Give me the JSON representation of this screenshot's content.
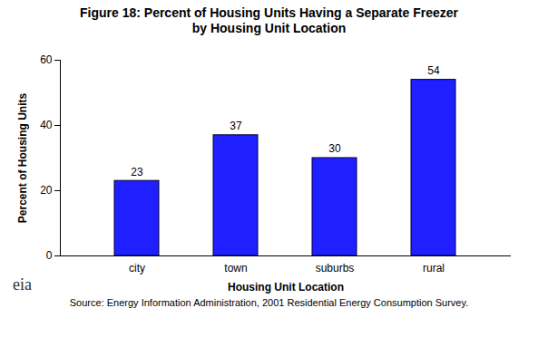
{
  "chart_data": {
    "type": "bar",
    "title": "Figure 18: Percent of Housing Units Having a Separate Freezer by Housing Unit Location",
    "x_label": "Housing Unit Location",
    "y_label": "Percent of Housing Units",
    "categories": [
      "city",
      "town",
      "suburbs",
      "rural"
    ],
    "values": [
      23,
      37,
      30,
      54
    ],
    "color": "#1f1fff",
    "ylim": [
      0,
      60
    ],
    "yticks": [
      0,
      20,
      40,
      60
    ],
    "grid": false,
    "data_labels": true,
    "logo": "eia",
    "source": "Source:  Energy Information Administration, 2001 Residential Energy Consumption Survey."
  }
}
